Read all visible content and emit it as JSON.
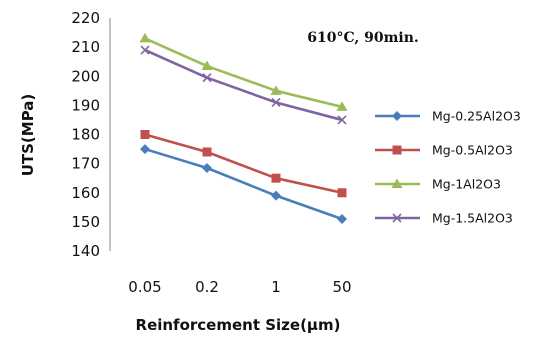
{
  "chart_data": {
    "type": "line",
    "categories": [
      "0.05",
      "0.2",
      "1",
      "50"
    ],
    "series": [
      {
        "name": "Mg-0.25Al2O3",
        "values": [
          175,
          168.5,
          159,
          151
        ],
        "color": "#4a7ebb",
        "marker": "diamond"
      },
      {
        "name": "Mg-0.5Al2O3",
        "values": [
          180,
          174,
          165,
          160
        ],
        "color": "#c0504d",
        "marker": "square"
      },
      {
        "name": "Mg-1Al2O3",
        "values": [
          213,
          203.5,
          195,
          189.5
        ],
        "color": "#9bbb59",
        "marker": "triangle"
      },
      {
        "name": "Mg-1.5Al2O3",
        "values": [
          209,
          199.5,
          191,
          185
        ],
        "color": "#8064a2",
        "marker": "x"
      }
    ],
    "title": "",
    "annotation": "610°C, 90min.",
    "xlabel": "Reinforcement Size(µm)",
    "ylabel": "UTS(MPa)",
    "ylim": [
      140,
      220
    ],
    "yticks": [
      140,
      150,
      160,
      170,
      180,
      190,
      200,
      210,
      220
    ],
    "grid": false,
    "legend_position": "right"
  }
}
